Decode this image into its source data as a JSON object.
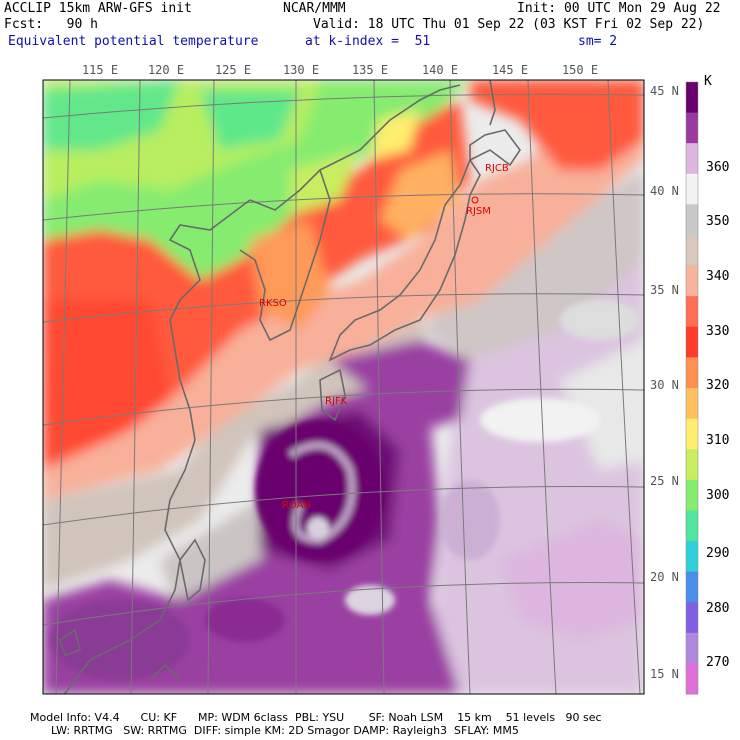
{
  "header": {
    "model": "ACCLIP 15km ARW-GFS init",
    "org": "NCAR/MMM",
    "init": "Init: 00 UTC Mon 29 Aug 22",
    "fcst": "Fcst:   90 h",
    "valid": "Valid: 18 UTC Thu 01 Sep 22 (03 KST Fri 02 Sep 22)",
    "field": "Equivalent potential temperature",
    "level": "at k-index =  51",
    "smooth": "sm= 2"
  },
  "map": {
    "lon_labels": [
      "115 E",
      "120 E",
      "125 E",
      "130 E",
      "135 E",
      "140 E",
      "145 E",
      "150 E"
    ],
    "lat_labels": [
      "45 N",
      "40 N",
      "35 N",
      "30 N",
      "25 N",
      "20 N",
      "15 N"
    ],
    "stations": [
      {
        "id": "RJCB"
      },
      {
        "id": "RJSM"
      },
      {
        "id": "RKSO"
      },
      {
        "id": "RJFK"
      },
      {
        "id": "ROAH"
      }
    ]
  },
  "colorbar": {
    "unit": "K",
    "labels": [
      "360",
      "350",
      "340",
      "330",
      "320",
      "310",
      "300",
      "290",
      "280",
      "270"
    ],
    "colors": [
      "#6a006e",
      "#9a3aa0",
      "#dcb6de",
      "#f2f2f2",
      "#c8c8c8",
      "#d8c7bd",
      "#f6b49c",
      "#ff6d55",
      "#ff3a2a",
      "#ff9050",
      "#ffc060",
      "#ffee70",
      "#c8ee60",
      "#86ec70",
      "#50e6a0",
      "#30d0d8",
      "#4a8ee8",
      "#8060e0",
      "#b088dc",
      "#e070d8"
    ]
  },
  "footer": {
    "line1": "Model Info: V4.4      CU: KF      MP: WDM 6class  PBL: YSU       SF: Noah LSM    15 km    51 levels   90 sec",
    "line2": "      LW: RRTMG   SW: RRTMG  DIFF: simple KM: 2D Smagor DAMP: Rayleigh3  SFLAY: MM5"
  }
}
